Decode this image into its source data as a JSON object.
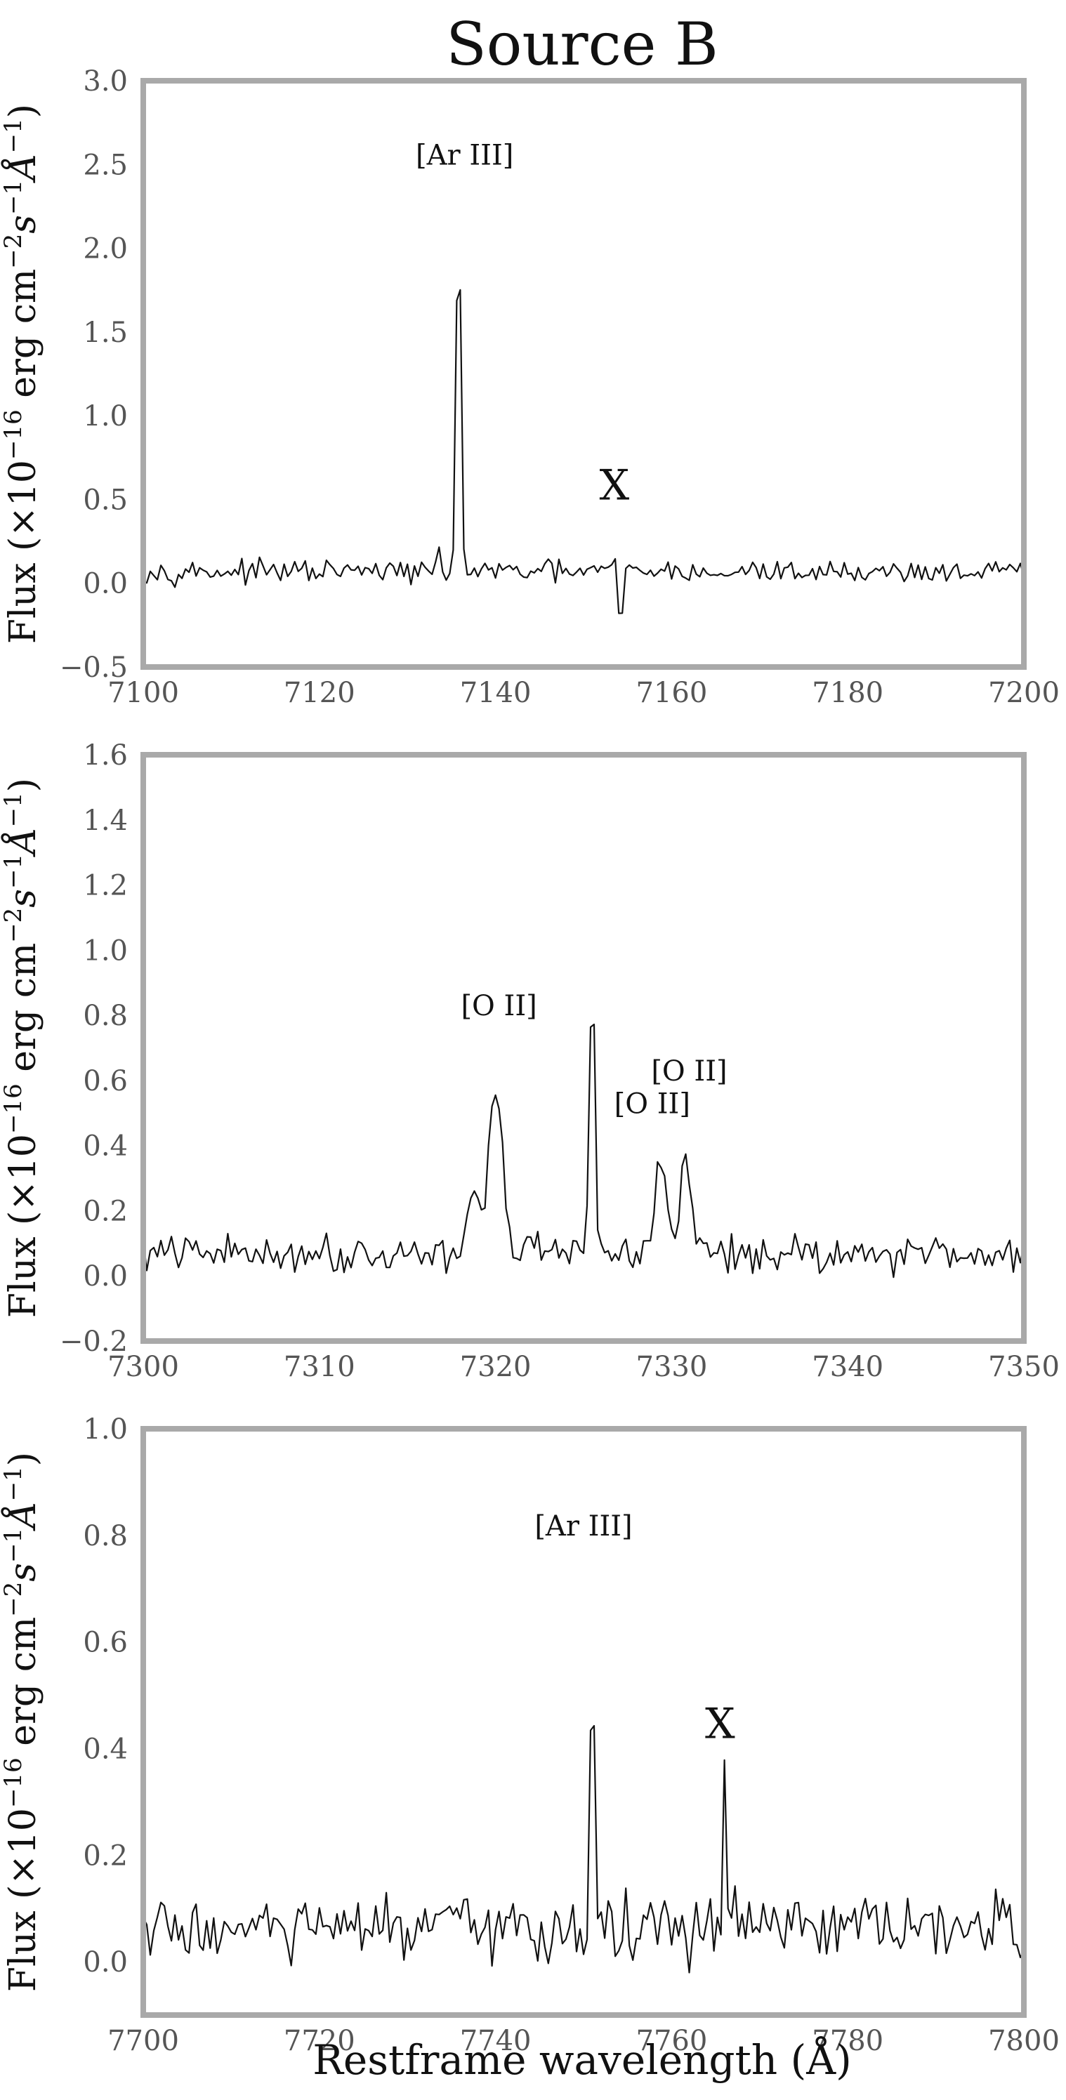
{
  "figure": {
    "title": "Source B",
    "xlabel": "Restframe wavelength (Å)",
    "ylabel_html": "Flux (×10<tspan baseline-shift=\"super\" font-size=\"34\">−16</tspan> erg cm<tspan baseline-shift=\"super\" font-size=\"34\">−2</tspan><tspan font-style=\"italic\">s</tspan><tspan baseline-shift=\"super\" font-size=\"34\">−1</tspan><tspan font-style=\"italic\">Å</tspan><tspan baseline-shift=\"super\" font-size=\"34\">−1</tspan>)"
  },
  "chart_data": [
    {
      "type": "line",
      "xlim": [
        7100,
        7200
      ],
      "ylim": [
        -0.5,
        3.0
      ],
      "xticks": [
        "7100",
        "7120",
        "7140",
        "7160",
        "7180",
        "7200"
      ],
      "xtick_values": [
        7100,
        7120,
        7140,
        7160,
        7180,
        7200
      ],
      "yticks": [
        "−0.5",
        "0.0",
        "0.5",
        "1.0",
        "1.5",
        "2.0",
        "2.5",
        "3.0"
      ],
      "ytick_values": [
        -0.5,
        0.0,
        0.5,
        1.0,
        1.5,
        2.0,
        2.5,
        3.0
      ],
      "grid": false,
      "spectrum": {
        "x_start": 7100,
        "x_end": 7200,
        "step": 0.4,
        "baseline": 0.07,
        "noise": 0.04,
        "features": [
          {
            "x": 7135.8,
            "amp": 2.27,
            "sigma": 0.25
          },
          {
            "x": 7133.5,
            "amp": 0.06,
            "sigma": 0.25
          },
          {
            "x": 7153.7,
            "amp": 0.12,
            "sigma": 0.15
          },
          {
            "x": 7154.2,
            "amp": -0.62,
            "sigma": 0.15
          },
          {
            "x": 7165.0,
            "amp": -0.1,
            "sigma": 0.2
          }
        ]
      },
      "annotations": [
        {
          "text": "[Ar III]",
          "x": 7136.5,
          "y": 2.5,
          "kind": "line-label"
        },
        {
          "text": "X",
          "x": 7153.5,
          "y": 0.5,
          "kind": "marker"
        }
      ]
    },
    {
      "type": "line",
      "xlim": [
        7300,
        7350
      ],
      "ylim": [
        -0.2,
        1.6
      ],
      "xticks": [
        "7300",
        "7310",
        "7320",
        "7330",
        "7340",
        "7350"
      ],
      "xtick_values": [
        7300,
        7310,
        7320,
        7330,
        7340,
        7350
      ],
      "yticks": [
        "−0.2",
        "0.0",
        "0.2",
        "0.4",
        "0.6",
        "0.8",
        "1.0",
        "1.2",
        "1.4",
        "1.6"
      ],
      "ytick_values": [
        -0.2,
        0.0,
        0.2,
        0.4,
        0.6,
        0.8,
        1.0,
        1.2,
        1.4,
        1.6
      ],
      "grid": false,
      "spectrum": {
        "x_start": 7300,
        "x_end": 7350,
        "step": 0.2,
        "baseline": 0.07,
        "noise": 0.035,
        "features": [
          {
            "x": 7320.0,
            "amp": 0.5,
            "sigma": 0.38
          },
          {
            "x": 7318.8,
            "amp": 0.17,
            "sigma": 0.4
          },
          {
            "x": 7325.5,
            "amp": 1.0,
            "sigma": 0.13
          },
          {
            "x": 7329.4,
            "amp": 0.3,
            "sigma": 0.3
          },
          {
            "x": 7330.8,
            "amp": 0.3,
            "sigma": 0.3
          }
        ]
      },
      "annotations": [
        {
          "text": "[O II]",
          "x": 7320.2,
          "y": 0.8,
          "kind": "line-label"
        },
        {
          "text": "[O II]",
          "x": 7331.0,
          "y": 0.6,
          "kind": "line-label"
        },
        {
          "text": "[O II]",
          "x": 7328.9,
          "y": 0.5,
          "kind": "line-label"
        }
      ]
    },
    {
      "type": "line",
      "xlim": [
        7700,
        7800
      ],
      "ylim": [
        -0.1,
        1.0
      ],
      "xticks": [
        "7700",
        "7720",
        "7740",
        "7760",
        "7780",
        "7800"
      ],
      "xtick_values": [
        7700,
        7720,
        7740,
        7760,
        7780,
        7800
      ],
      "yticks": [
        "0.0",
        "0.2",
        "0.4",
        "0.6",
        "0.8",
        "1.0"
      ],
      "ytick_values": [
        0.0,
        0.2,
        0.4,
        0.6,
        0.8,
        1.0
      ],
      "grid": false,
      "spectrum": {
        "x_start": 7700,
        "x_end": 7800,
        "step": 0.4,
        "baseline": 0.06,
        "noise": 0.04,
        "features": [
          {
            "x": 7751.0,
            "amp": 0.58,
            "sigma": 0.22
          },
          {
            "x": 7766.0,
            "amp": 0.3,
            "sigma": 0.18
          },
          {
            "x": 7767.0,
            "amp": 0.15,
            "sigma": 0.15
          }
        ]
      },
      "annotations": [
        {
          "text": "[Ar III]",
          "x": 7750.0,
          "y": 0.8,
          "kind": "line-label"
        },
        {
          "text": "X",
          "x": 7765.5,
          "y": 0.42,
          "kind": "marker"
        }
      ]
    }
  ]
}
